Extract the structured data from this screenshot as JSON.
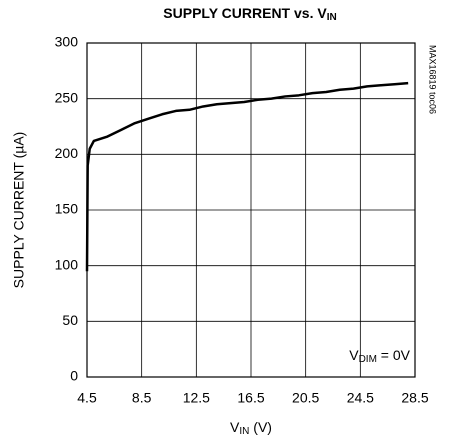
{
  "chart_data": {
    "type": "line",
    "title": [
      "SUPPLY CURRENT vs. V",
      "IN"
    ],
    "x_label": [
      "V",
      "IN",
      " (V)"
    ],
    "y_label": "SUPPLY CURRENT (µA)",
    "annotation": [
      "V",
      "DIM",
      " = 0V"
    ],
    "side_note": "MAX16819 toc06",
    "x": [
      4.5,
      4.55,
      4.7,
      5,
      6,
      7,
      8,
      9,
      10,
      11,
      12,
      13,
      14,
      15,
      16,
      17,
      18,
      19,
      20,
      21,
      22,
      23,
      24,
      25,
      26,
      27,
      28
    ],
    "series": [
      {
        "name": "Supply current",
        "color": "#000000",
        "values": [
          95,
          190,
          205,
          212,
          216,
          222,
          228,
          232,
          236,
          239,
          240,
          243,
          245,
          246,
          247,
          249,
          250,
          252,
          253,
          255,
          256,
          258,
          259,
          261,
          262,
          263,
          264
        ]
      }
    ],
    "xlim": [
      4.5,
      28.5
    ],
    "xticks": [
      4.5,
      8.5,
      12.5,
      16.5,
      20.5,
      24.5,
      28.5
    ],
    "ylim": [
      0,
      300
    ],
    "yticks": [
      0,
      50,
      100,
      150,
      200,
      250,
      300
    ],
    "grid": true
  }
}
